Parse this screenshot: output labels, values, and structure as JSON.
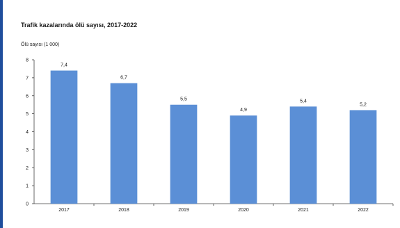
{
  "chart_data": {
    "type": "bar",
    "title": "Trafik kazalarında ölü sayısı, 2017-2022",
    "ylabel": "Ölü sayısı (1 000)",
    "xlabel": "",
    "categories": [
      "2017",
      "2018",
      "2019",
      "2020",
      "2021",
      "2022"
    ],
    "values": [
      7.4,
      6.7,
      5.5,
      4.9,
      5.4,
      5.2
    ],
    "data_labels": [
      "7,4",
      "6,7",
      "5,5",
      "4,9",
      "5,4",
      "5,2"
    ],
    "ylim": [
      0,
      8
    ],
    "yticks": [
      "0",
      "1",
      "2",
      "3",
      "4",
      "5",
      "6",
      "7",
      "8"
    ],
    "grid": false,
    "legend": "none",
    "bar_color": "#5b8fd6",
    "axis_color": "#404040",
    "frame_color": "#1f4e9c"
  }
}
